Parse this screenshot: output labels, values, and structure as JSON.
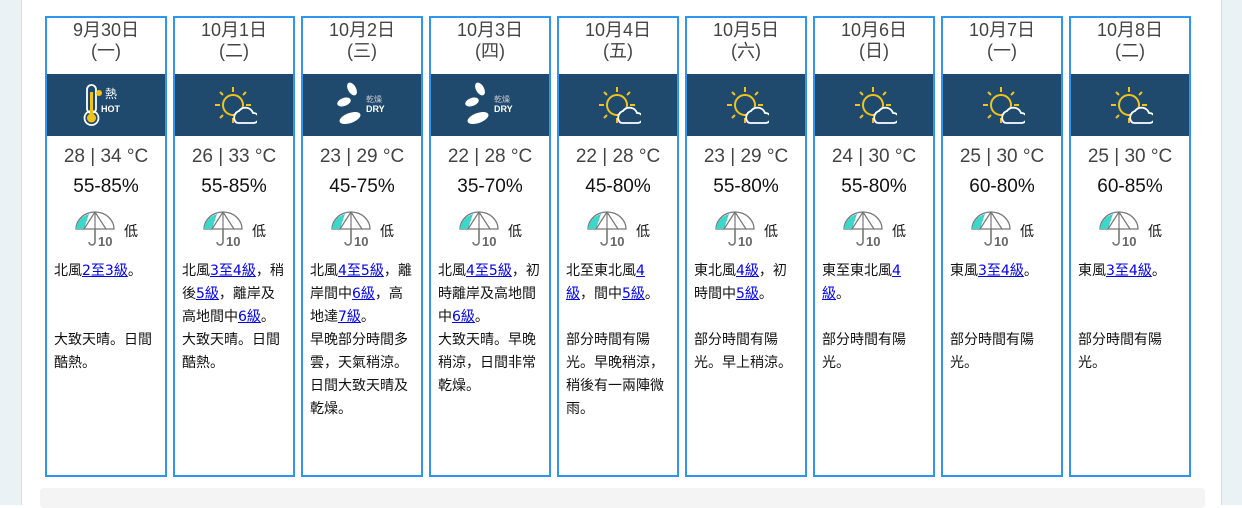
{
  "colors": {
    "card_border": "#2f95f1",
    "icon_band": "#1f4a6e",
    "link": "#0000ee"
  },
  "days": [
    {
      "date": "9月30日",
      "weekday": "(一)",
      "icon": "hot-icon",
      "icon_text": [
        "熱",
        "HOT"
      ],
      "temp": "28 | 34 °C",
      "rh": "55-85%",
      "psr": "低",
      "wind": [
        {
          "t": "北風"
        },
        {
          "t": "2至3級",
          "link": true
        },
        {
          "t": "。"
        }
      ],
      "desc": "大致天晴。日間酷熱。"
    },
    {
      "date": "10月1日",
      "weekday": "(二)",
      "icon": "sunny-periods-icon",
      "temp": "26 | 33 °C",
      "rh": "55-85%",
      "psr": "低",
      "wind": [
        {
          "t": "北風"
        },
        {
          "t": "3至4級",
          "link": true
        },
        {
          "t": "，稍後"
        },
        {
          "t": "5級",
          "link": true
        },
        {
          "t": "，離岸及高地間中"
        },
        {
          "t": "6級",
          "link": true
        },
        {
          "t": "。"
        }
      ],
      "desc": "大致天晴。日間酷熱。"
    },
    {
      "date": "10月2日",
      "weekday": "(三)",
      "icon": "dry-icon",
      "icon_text": [
        "乾燥",
        "DRY"
      ],
      "temp": "23 | 29 °C",
      "rh": "45-75%",
      "psr": "低",
      "wind": [
        {
          "t": "北風"
        },
        {
          "t": "4至5級",
          "link": true
        },
        {
          "t": "，離岸間中"
        },
        {
          "t": "6級",
          "link": true
        },
        {
          "t": "，高地達"
        },
        {
          "t": "7級",
          "link": true
        },
        {
          "t": "。"
        }
      ],
      "desc": "早晚部分時間多雲，天氣稍涼。日間大致天晴及乾燥。"
    },
    {
      "date": "10月3日",
      "weekday": "(四)",
      "icon": "dry-icon",
      "icon_text": [
        "乾燥",
        "DRY"
      ],
      "temp": "22 | 28 °C",
      "rh": "35-70%",
      "psr": "低",
      "wind": [
        {
          "t": "北風"
        },
        {
          "t": "4至5級",
          "link": true
        },
        {
          "t": "，初時離岸及高地間中"
        },
        {
          "t": "6級",
          "link": true
        },
        {
          "t": "。"
        }
      ],
      "desc": "大致天晴。早晚稍涼，日間非常乾燥。"
    },
    {
      "date": "10月4日",
      "weekday": "(五)",
      "icon": "sunny-periods-icon",
      "temp": "22 | 28 °C",
      "rh": "45-80%",
      "psr": "低",
      "wind": [
        {
          "t": "北至東北風"
        },
        {
          "t": "4級",
          "link": true
        },
        {
          "t": "，間中"
        },
        {
          "t": "5級",
          "link": true
        },
        {
          "t": "。"
        }
      ],
      "desc": "部分時間有陽光。早晚稍涼，稍後有一兩陣微雨。"
    },
    {
      "date": "10月5日",
      "weekday": "(六)",
      "icon": "sunny-periods-icon",
      "temp": "23 | 29 °C",
      "rh": "55-80%",
      "psr": "低",
      "wind": [
        {
          "t": "東北風"
        },
        {
          "t": "4級",
          "link": true
        },
        {
          "t": "，初時間中"
        },
        {
          "t": "5級",
          "link": true
        },
        {
          "t": "。"
        }
      ],
      "desc": "部分時間有陽光。早上稍涼。"
    },
    {
      "date": "10月6日",
      "weekday": "(日)",
      "icon": "sunny-periods-icon",
      "temp": "24 | 30 °C",
      "rh": "55-80%",
      "psr": "低",
      "wind": [
        {
          "t": "東至東北風"
        },
        {
          "t": "4級",
          "link": true
        },
        {
          "t": "。"
        }
      ],
      "desc": "部分時間有陽光。"
    },
    {
      "date": "10月7日",
      "weekday": "(一)",
      "icon": "sunny-periods-icon",
      "temp": "25 | 30 °C",
      "rh": "60-80%",
      "psr": "低",
      "wind": [
        {
          "t": "東風"
        },
        {
          "t": "3至4級",
          "link": true
        },
        {
          "t": "。"
        }
      ],
      "desc": "部分時間有陽光。"
    },
    {
      "date": "10月8日",
      "weekday": "(二)",
      "icon": "sunny-periods-icon",
      "temp": "25 | 30 °C",
      "rh": "60-85%",
      "psr": "低",
      "wind": [
        {
          "t": "東風"
        },
        {
          "t": "3至4級",
          "link": true
        },
        {
          "t": "。"
        }
      ],
      "desc": "部分時間有陽光。"
    }
  ]
}
